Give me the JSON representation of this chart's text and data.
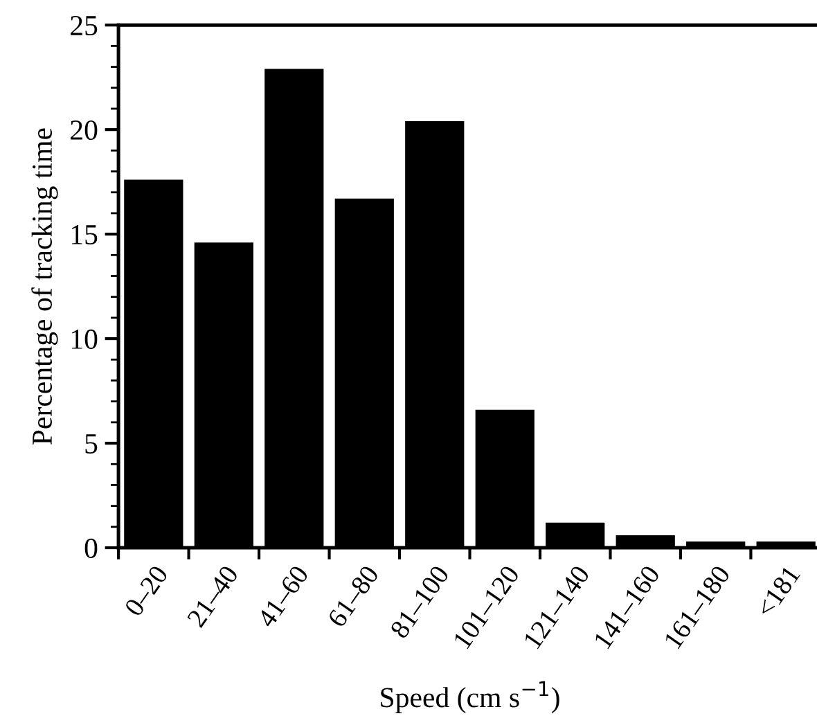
{
  "chart_data": {
    "type": "bar",
    "xlabel": "Speed (cm s$^{−1}$)",
    "ylabel": "Percentage of tracking time",
    "categories": [
      "0–20",
      "21–40",
      "41–60",
      "61–80",
      "81–100",
      "101–120",
      "121–140",
      "141–160",
      "161–180",
      "<181"
    ],
    "values": [
      17.6,
      14.6,
      22.9,
      16.7,
      20.4,
      6.6,
      1.2,
      0.6,
      0.3,
      0.3
    ],
    "color": "#000000",
    "ylim": [
      0,
      25
    ],
    "yticks": [
      0,
      5,
      10,
      15,
      20,
      25
    ],
    "grid": false,
    "legend": false
  }
}
